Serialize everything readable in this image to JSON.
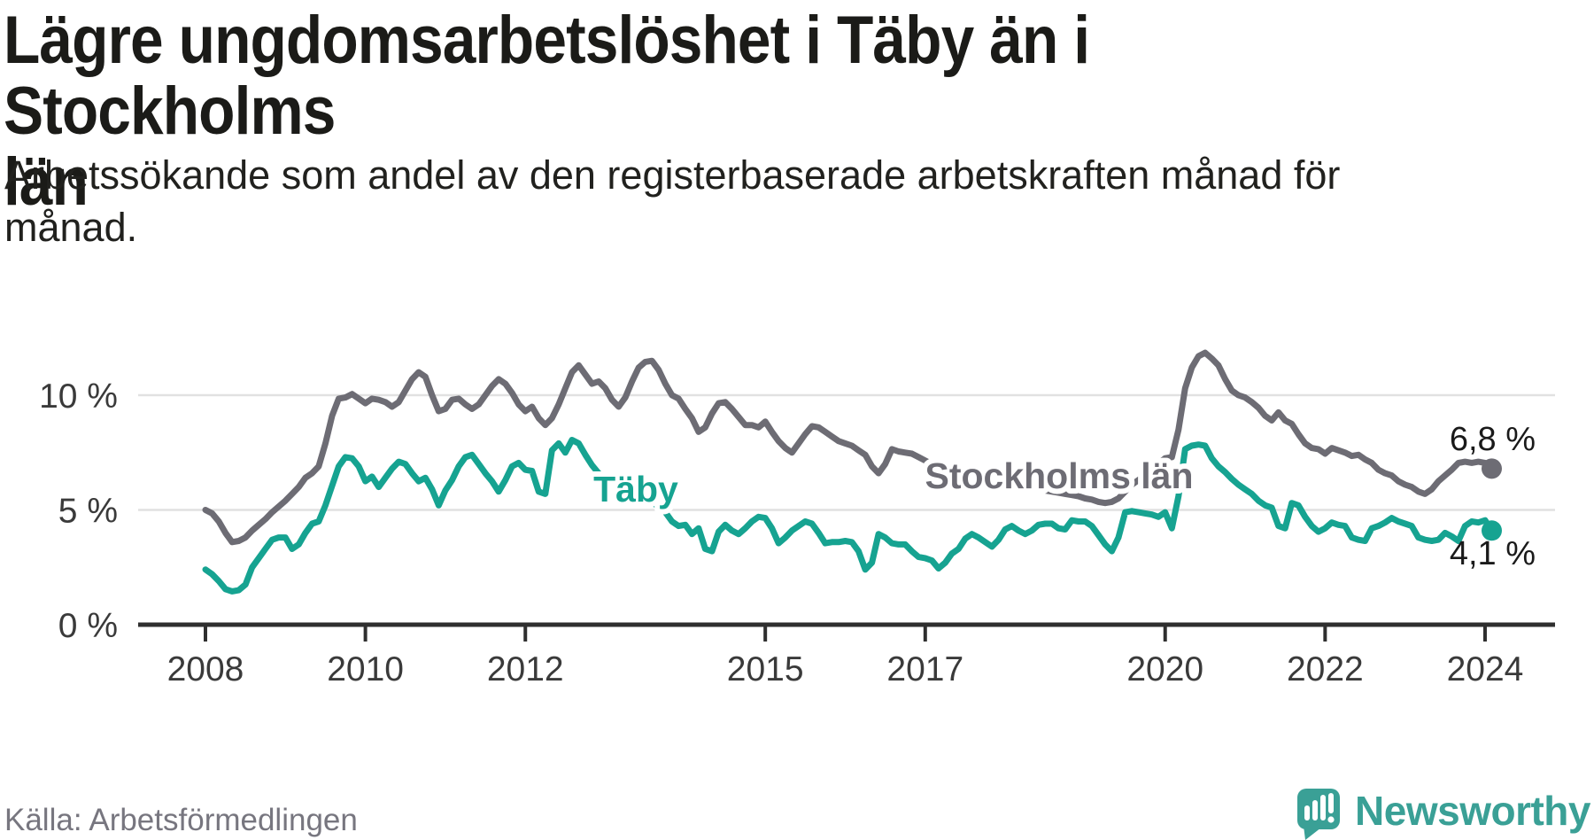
{
  "header": {
    "title": "Lägre ungdomsarbetslöshet i Täby än i Stockholms\nlän",
    "subtitle": "Arbetssökande som andel av den registerbaserade arbetskraften månad för\nmånad."
  },
  "footer": {
    "source": "Källa: Arbetsförmedlingen",
    "brand": "Newsworthy"
  },
  "colors": {
    "taby_line": "#16a391",
    "stockholm_line": "#6d6c74",
    "gridline": "#e1e1e1",
    "axis": "#2f2f2f",
    "tick_label": "#3a3a3a",
    "end_label": "#1a1a1a",
    "brand_teal": "#3aa096",
    "source_gray": "#77767f"
  },
  "chart_data": {
    "type": "line",
    "unit": "%",
    "frequency": "monthly",
    "x_start": "2008-01",
    "x_end": "2024-02",
    "grid": true,
    "legend_position": "inline-labels",
    "y_axis": {
      "tick_values": [
        0,
        5,
        10
      ],
      "tick_labels": [
        "0 %",
        "5 %",
        "10 %"
      ],
      "ylim": [
        0,
        12.5
      ]
    },
    "x_axis": {
      "tick_years": [
        2008,
        2010,
        2012,
        2015,
        2017,
        2020,
        2022,
        2024
      ]
    },
    "series": [
      {
        "name": "Stockholms län",
        "color": "#6d6c74",
        "end_label": "6,8 %",
        "end_value": 6.8,
        "values": [
          5.0,
          4.85,
          4.5,
          4.0,
          3.6,
          3.65,
          3.8,
          4.1,
          4.35,
          4.6,
          4.9,
          5.15,
          5.4,
          5.7,
          6.0,
          6.4,
          6.6,
          6.9,
          7.9,
          9.1,
          9.85,
          9.9,
          10.05,
          9.85,
          9.65,
          9.85,
          9.8,
          9.7,
          9.5,
          9.7,
          10.2,
          10.7,
          11.0,
          10.8,
          10.0,
          9.3,
          9.4,
          9.8,
          9.85,
          9.6,
          9.4,
          9.6,
          10.0,
          10.4,
          10.7,
          10.5,
          10.1,
          9.6,
          9.3,
          9.5,
          9.0,
          8.7,
          9.0,
          9.6,
          10.3,
          11.0,
          11.3,
          10.9,
          10.5,
          10.6,
          10.3,
          9.8,
          9.5,
          9.9,
          10.6,
          11.2,
          11.45,
          11.5,
          11.1,
          10.5,
          10.0,
          9.85,
          9.4,
          9.0,
          8.4,
          8.6,
          9.2,
          9.65,
          9.7,
          9.4,
          9.05,
          8.7,
          8.7,
          8.6,
          8.85,
          8.4,
          8.0,
          7.7,
          7.5,
          7.9,
          8.3,
          8.65,
          8.6,
          8.4,
          8.2,
          8.0,
          7.9,
          7.8,
          7.6,
          7.4,
          6.9,
          6.6,
          7.0,
          7.65,
          7.55,
          7.5,
          7.45,
          7.3,
          7.15,
          7.0,
          6.9,
          6.8,
          6.7,
          6.6,
          6.5,
          6.45,
          6.4,
          6.35,
          6.3,
          6.25,
          6.2,
          6.15,
          6.1,
          6.0,
          5.95,
          5.9,
          5.85,
          5.8,
          5.75,
          5.7,
          5.65,
          5.6,
          5.5,
          5.45,
          5.35,
          5.3,
          5.35,
          5.5,
          5.8,
          6.1,
          6.3,
          6.5,
          6.8,
          7.0,
          7.25,
          7.3,
          8.5,
          10.3,
          11.2,
          11.7,
          11.85,
          11.6,
          11.3,
          10.7,
          10.2,
          10.0,
          9.9,
          9.7,
          9.45,
          9.1,
          8.9,
          9.25,
          8.9,
          8.75,
          8.3,
          7.9,
          7.7,
          7.65,
          7.45,
          7.7,
          7.6,
          7.5,
          7.35,
          7.4,
          7.2,
          7.05,
          6.75,
          6.6,
          6.5,
          6.25,
          6.1,
          6.0,
          5.8,
          5.7,
          5.9,
          6.25,
          6.5,
          6.75,
          7.05,
          7.1,
          7.05,
          7.1,
          7.05,
          6.8
        ]
      },
      {
        "name": "Täby",
        "color": "#16a391",
        "end_label": "4,1 %",
        "end_value": 4.1,
        "values": [
          2.4,
          2.2,
          1.9,
          1.55,
          1.45,
          1.5,
          1.75,
          2.5,
          2.9,
          3.3,
          3.7,
          3.8,
          3.8,
          3.3,
          3.5,
          4.0,
          4.4,
          4.5,
          5.2,
          6.05,
          6.9,
          7.3,
          7.25,
          6.9,
          6.25,
          6.45,
          6.0,
          6.4,
          6.8,
          7.1,
          7.0,
          6.6,
          6.25,
          6.4,
          5.9,
          5.2,
          5.85,
          6.3,
          6.9,
          7.3,
          7.4,
          7.0,
          6.6,
          6.25,
          5.8,
          6.3,
          6.9,
          7.05,
          6.75,
          6.7,
          5.8,
          5.7,
          7.6,
          7.9,
          7.5,
          8.05,
          7.9,
          7.4,
          6.95,
          6.6,
          6.4,
          6.2,
          6.45,
          6.1,
          5.9,
          6.15,
          5.9,
          5.4,
          5.1,
          4.9,
          4.5,
          4.3,
          4.35,
          3.95,
          4.2,
          3.3,
          3.2,
          4.05,
          4.35,
          4.1,
          3.95,
          4.2,
          4.5,
          4.7,
          4.65,
          4.2,
          3.55,
          3.8,
          4.1,
          4.3,
          4.5,
          4.4,
          4.0,
          3.55,
          3.6,
          3.6,
          3.65,
          3.6,
          3.2,
          2.4,
          2.7,
          3.95,
          3.8,
          3.55,
          3.5,
          3.5,
          3.2,
          2.95,
          2.9,
          2.8,
          2.45,
          2.7,
          3.1,
          3.3,
          3.75,
          3.95,
          3.8,
          3.6,
          3.4,
          3.7,
          4.15,
          4.3,
          4.1,
          3.95,
          4.1,
          4.35,
          4.4,
          4.4,
          4.2,
          4.15,
          4.55,
          4.5,
          4.5,
          4.3,
          3.9,
          3.5,
          3.2,
          3.8,
          4.9,
          4.95,
          4.9,
          4.85,
          4.8,
          4.7,
          4.9,
          4.2,
          5.6,
          7.65,
          7.8,
          7.85,
          7.8,
          7.25,
          6.9,
          6.65,
          6.35,
          6.1,
          5.9,
          5.7,
          5.4,
          5.2,
          5.1,
          4.3,
          4.2,
          5.3,
          5.2,
          4.7,
          4.3,
          4.05,
          4.2,
          4.45,
          4.35,
          4.3,
          3.8,
          3.7,
          3.65,
          4.2,
          4.3,
          4.45,
          4.65,
          4.5,
          4.4,
          4.3,
          3.8,
          3.7,
          3.65,
          3.7,
          4.0,
          3.85,
          3.65,
          4.3,
          4.5,
          4.45,
          4.55,
          4.1
        ]
      }
    ]
  }
}
